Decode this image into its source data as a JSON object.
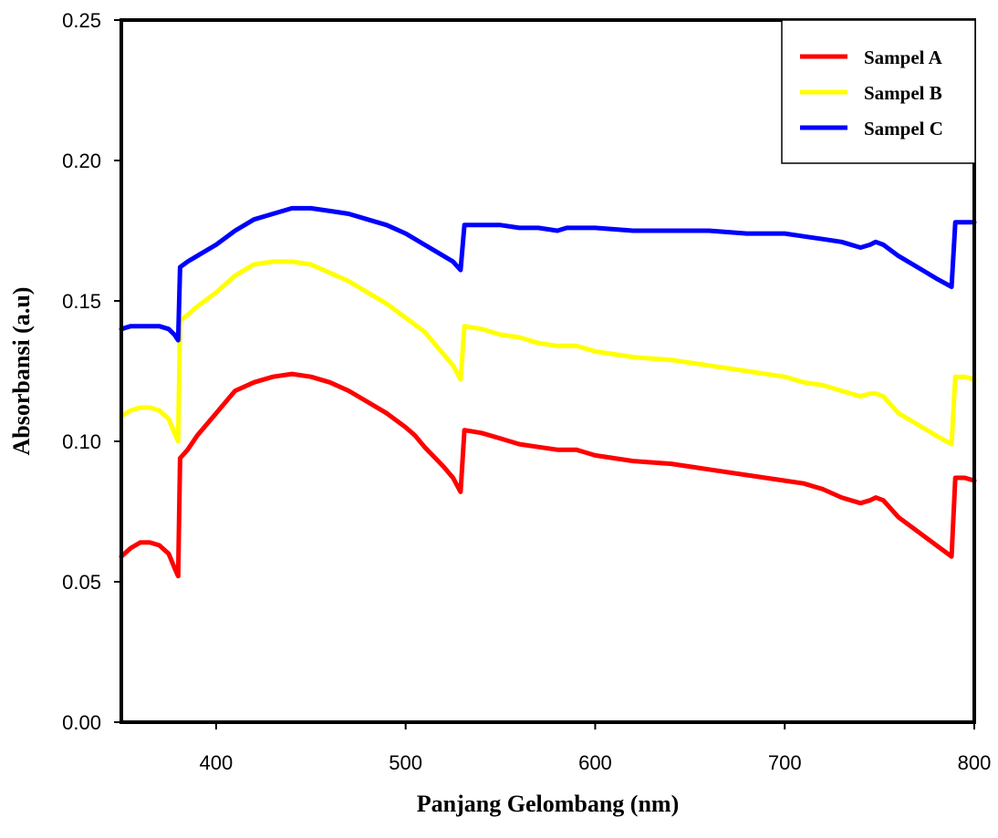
{
  "chart_data": {
    "type": "line",
    "title": "",
    "xlabel": "Panjang Gelombang (nm)",
    "ylabel": "Absorbansi (a.u)",
    "xlim": [
      350,
      800
    ],
    "ylim": [
      0.0,
      0.25
    ],
    "x_ticks": [
      400,
      500,
      600,
      700,
      800
    ],
    "x_tick_labels": [
      "400",
      "500",
      "600",
      "700",
      "800"
    ],
    "y_ticks": [
      0.0,
      0.05,
      0.1,
      0.15,
      0.2,
      0.25
    ],
    "y_tick_labels": [
      "0.00",
      "0.05",
      "0.10",
      "0.15",
      "0.20",
      "0.25"
    ],
    "grid": false,
    "legend_position": "top-right",
    "series": [
      {
        "name": "Sampel A",
        "color": "#ff0000",
        "points": [
          [
            350,
            0.059
          ],
          [
            355,
            0.062
          ],
          [
            360,
            0.064
          ],
          [
            365,
            0.064
          ],
          [
            370,
            0.063
          ],
          [
            375,
            0.06
          ],
          [
            378,
            0.055
          ],
          [
            380,
            0.052
          ],
          [
            381,
            0.094
          ],
          [
            385,
            0.097
          ],
          [
            390,
            0.102
          ],
          [
            400,
            0.11
          ],
          [
            410,
            0.118
          ],
          [
            420,
            0.121
          ],
          [
            430,
            0.123
          ],
          [
            440,
            0.124
          ],
          [
            450,
            0.123
          ],
          [
            460,
            0.121
          ],
          [
            470,
            0.118
          ],
          [
            480,
            0.114
          ],
          [
            490,
            0.11
          ],
          [
            500,
            0.105
          ],
          [
            505,
            0.102
          ],
          [
            510,
            0.098
          ],
          [
            520,
            0.091
          ],
          [
            525,
            0.087
          ],
          [
            529,
            0.082
          ],
          [
            531,
            0.104
          ],
          [
            540,
            0.103
          ],
          [
            550,
            0.101
          ],
          [
            560,
            0.099
          ],
          [
            570,
            0.098
          ],
          [
            580,
            0.097
          ],
          [
            585,
            0.097
          ],
          [
            590,
            0.097
          ],
          [
            600,
            0.095
          ],
          [
            610,
            0.094
          ],
          [
            620,
            0.093
          ],
          [
            640,
            0.092
          ],
          [
            660,
            0.09
          ],
          [
            680,
            0.088
          ],
          [
            700,
            0.086
          ],
          [
            710,
            0.085
          ],
          [
            720,
            0.083
          ],
          [
            730,
            0.08
          ],
          [
            740,
            0.078
          ],
          [
            745,
            0.079
          ],
          [
            748,
            0.08
          ],
          [
            752,
            0.079
          ],
          [
            760,
            0.073
          ],
          [
            770,
            0.068
          ],
          [
            780,
            0.063
          ],
          [
            788,
            0.059
          ],
          [
            790,
            0.087
          ],
          [
            795,
            0.087
          ],
          [
            800,
            0.086
          ]
        ]
      },
      {
        "name": "Sampel B",
        "color": "#ffff00",
        "points": [
          [
            350,
            0.109
          ],
          [
            355,
            0.111
          ],
          [
            360,
            0.112
          ],
          [
            365,
            0.112
          ],
          [
            370,
            0.111
          ],
          [
            375,
            0.108
          ],
          [
            378,
            0.103
          ],
          [
            380,
            0.1
          ],
          [
            381,
            0.143
          ],
          [
            385,
            0.145
          ],
          [
            390,
            0.148
          ],
          [
            400,
            0.153
          ],
          [
            410,
            0.159
          ],
          [
            420,
            0.163
          ],
          [
            430,
            0.164
          ],
          [
            440,
            0.164
          ],
          [
            450,
            0.163
          ],
          [
            460,
            0.16
          ],
          [
            470,
            0.157
          ],
          [
            480,
            0.153
          ],
          [
            490,
            0.149
          ],
          [
            500,
            0.144
          ],
          [
            510,
            0.139
          ],
          [
            520,
            0.131
          ],
          [
            525,
            0.127
          ],
          [
            529,
            0.122
          ],
          [
            531,
            0.141
          ],
          [
            540,
            0.14
          ],
          [
            550,
            0.138
          ],
          [
            560,
            0.137
          ],
          [
            570,
            0.135
          ],
          [
            580,
            0.134
          ],
          [
            585,
            0.134
          ],
          [
            590,
            0.134
          ],
          [
            600,
            0.132
          ],
          [
            620,
            0.13
          ],
          [
            640,
            0.129
          ],
          [
            660,
            0.127
          ],
          [
            680,
            0.125
          ],
          [
            700,
            0.123
          ],
          [
            710,
            0.121
          ],
          [
            720,
            0.12
          ],
          [
            730,
            0.118
          ],
          [
            740,
            0.116
          ],
          [
            745,
            0.117
          ],
          [
            748,
            0.117
          ],
          [
            752,
            0.116
          ],
          [
            760,
            0.11
          ],
          [
            770,
            0.106
          ],
          [
            780,
            0.102
          ],
          [
            788,
            0.099
          ],
          [
            790,
            0.123
          ],
          [
            795,
            0.123
          ],
          [
            800,
            0.122
          ]
        ]
      },
      {
        "name": "Sampel C",
        "color": "#0000ff",
        "points": [
          [
            350,
            0.14
          ],
          [
            355,
            0.141
          ],
          [
            360,
            0.141
          ],
          [
            365,
            0.141
          ],
          [
            370,
            0.141
          ],
          [
            375,
            0.14
          ],
          [
            378,
            0.138
          ],
          [
            380,
            0.136
          ],
          [
            381,
            0.162
          ],
          [
            385,
            0.164
          ],
          [
            390,
            0.166
          ],
          [
            400,
            0.17
          ],
          [
            410,
            0.175
          ],
          [
            420,
            0.179
          ],
          [
            430,
            0.181
          ],
          [
            440,
            0.183
          ],
          [
            450,
            0.183
          ],
          [
            460,
            0.182
          ],
          [
            470,
            0.181
          ],
          [
            480,
            0.179
          ],
          [
            490,
            0.177
          ],
          [
            500,
            0.174
          ],
          [
            510,
            0.17
          ],
          [
            520,
            0.166
          ],
          [
            525,
            0.164
          ],
          [
            529,
            0.161
          ],
          [
            531,
            0.177
          ],
          [
            540,
            0.177
          ],
          [
            550,
            0.177
          ],
          [
            560,
            0.176
          ],
          [
            570,
            0.176
          ],
          [
            580,
            0.175
          ],
          [
            585,
            0.176
          ],
          [
            590,
            0.176
          ],
          [
            600,
            0.176
          ],
          [
            620,
            0.175
          ],
          [
            640,
            0.175
          ],
          [
            660,
            0.175
          ],
          [
            680,
            0.174
          ],
          [
            700,
            0.174
          ],
          [
            710,
            0.173
          ],
          [
            720,
            0.172
          ],
          [
            730,
            0.171
          ],
          [
            740,
            0.169
          ],
          [
            745,
            0.17
          ],
          [
            748,
            0.171
          ],
          [
            752,
            0.17
          ],
          [
            760,
            0.166
          ],
          [
            770,
            0.162
          ],
          [
            780,
            0.158
          ],
          [
            788,
            0.155
          ],
          [
            790,
            0.178
          ],
          [
            795,
            0.178
          ],
          [
            800,
            0.178
          ]
        ]
      }
    ]
  }
}
